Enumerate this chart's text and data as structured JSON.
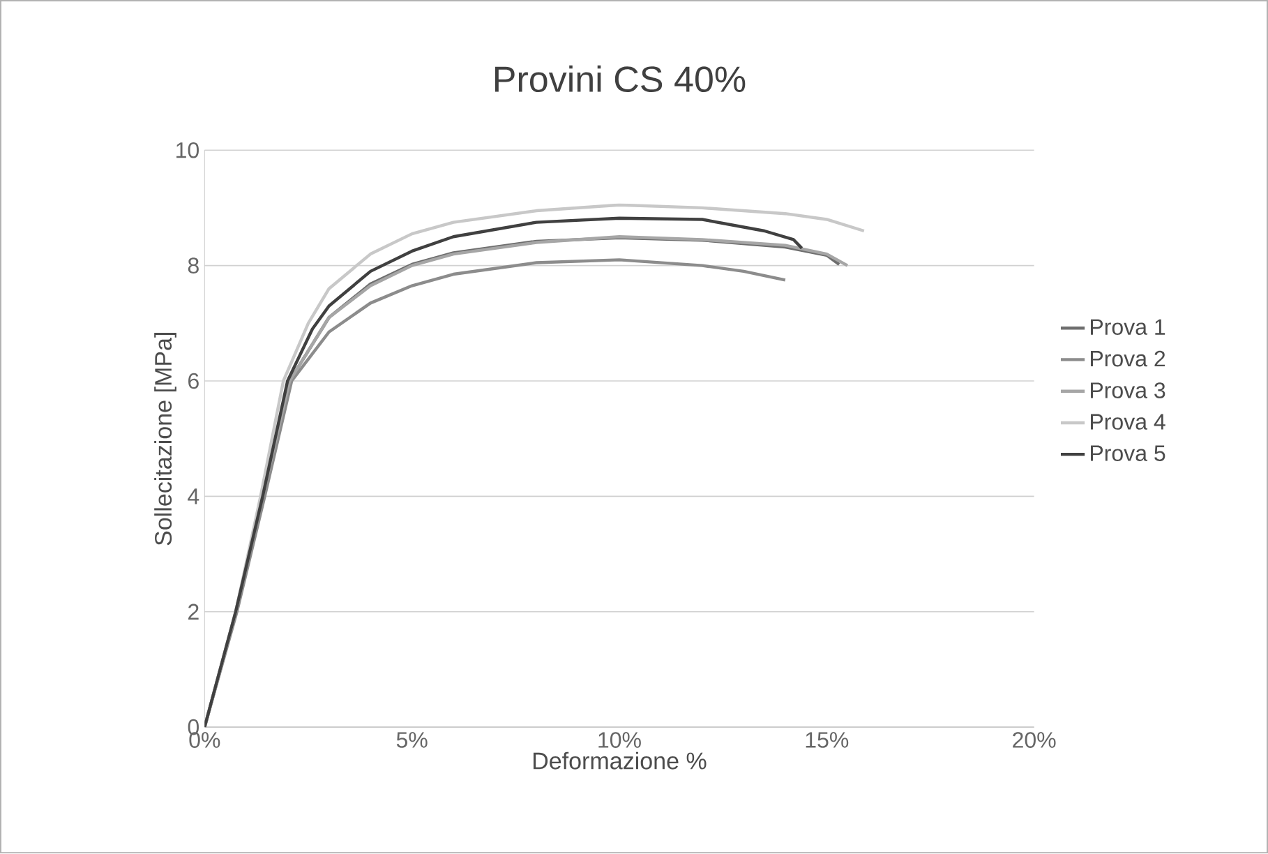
{
  "chart_data": {
    "type": "line",
    "title": "Provini CS 40%",
    "xlabel": "Deformazione %",
    "ylabel": "Sollecitazione [MPa]",
    "xlim": [
      0,
      20
    ],
    "xticks": [
      {
        "value": 0,
        "label": "0%"
      },
      {
        "value": 5,
        "label": "5%"
      },
      {
        "value": 10,
        "label": "10%"
      },
      {
        "value": 15,
        "label": "15%"
      },
      {
        "value": 20,
        "label": "20%"
      }
    ],
    "ylim": [
      0,
      10
    ],
    "yticks": [
      0,
      2,
      4,
      6,
      8,
      10
    ],
    "grid": "y",
    "legend": "right",
    "marker": "none",
    "line_style": "solid",
    "series": [
      {
        "name": "Prova 1",
        "color": "#6e6e6e",
        "x": [
          0,
          0.76,
          1.42,
          2.05,
          3,
          4,
          5,
          6,
          8,
          10,
          12,
          14,
          15,
          15.3
        ],
        "values": [
          0,
          2,
          4,
          6,
          7.1,
          7.68,
          8.02,
          8.22,
          8.42,
          8.48,
          8.44,
          8.32,
          8.18,
          8.02
        ]
      },
      {
        "name": "Prova 2",
        "color": "#8c8c8c",
        "x": [
          0,
          0.78,
          1.45,
          2.1,
          3,
          4,
          5,
          6,
          8,
          10,
          12,
          13,
          14
        ],
        "values": [
          0,
          2,
          4,
          6,
          6.85,
          7.35,
          7.65,
          7.85,
          8.05,
          8.1,
          8.0,
          7.9,
          7.75
        ]
      },
      {
        "name": "Prova 3",
        "color": "#a6a6a6",
        "x": [
          0,
          0.75,
          1.4,
          2.05,
          3,
          4,
          5,
          6,
          8,
          10,
          12,
          14,
          15,
          15.5
        ],
        "values": [
          0,
          2,
          4,
          6,
          7.1,
          7.65,
          8.0,
          8.2,
          8.4,
          8.5,
          8.45,
          8.35,
          8.2,
          8.0
        ]
      },
      {
        "name": "Prova 4",
        "color": "#c8c8c8",
        "x": [
          0,
          0.75,
          1.35,
          1.9,
          2.5,
          3,
          4,
          5,
          6,
          8,
          10,
          12,
          14,
          15,
          15.9
        ],
        "values": [
          0,
          2,
          4,
          6,
          7.0,
          7.6,
          8.2,
          8.55,
          8.75,
          8.95,
          9.05,
          9.0,
          8.9,
          8.8,
          8.6
        ]
      },
      {
        "name": "Prova 5",
        "color": "#404040",
        "x": [
          0,
          0.75,
          1.4,
          2.0,
          2.6,
          3,
          4,
          5,
          6,
          8,
          10,
          12,
          13.5,
          14.2,
          14.4
        ],
        "values": [
          0,
          2,
          4,
          6,
          6.9,
          7.3,
          7.9,
          8.25,
          8.5,
          8.75,
          8.82,
          8.8,
          8.6,
          8.45,
          8.3
        ]
      }
    ]
  }
}
